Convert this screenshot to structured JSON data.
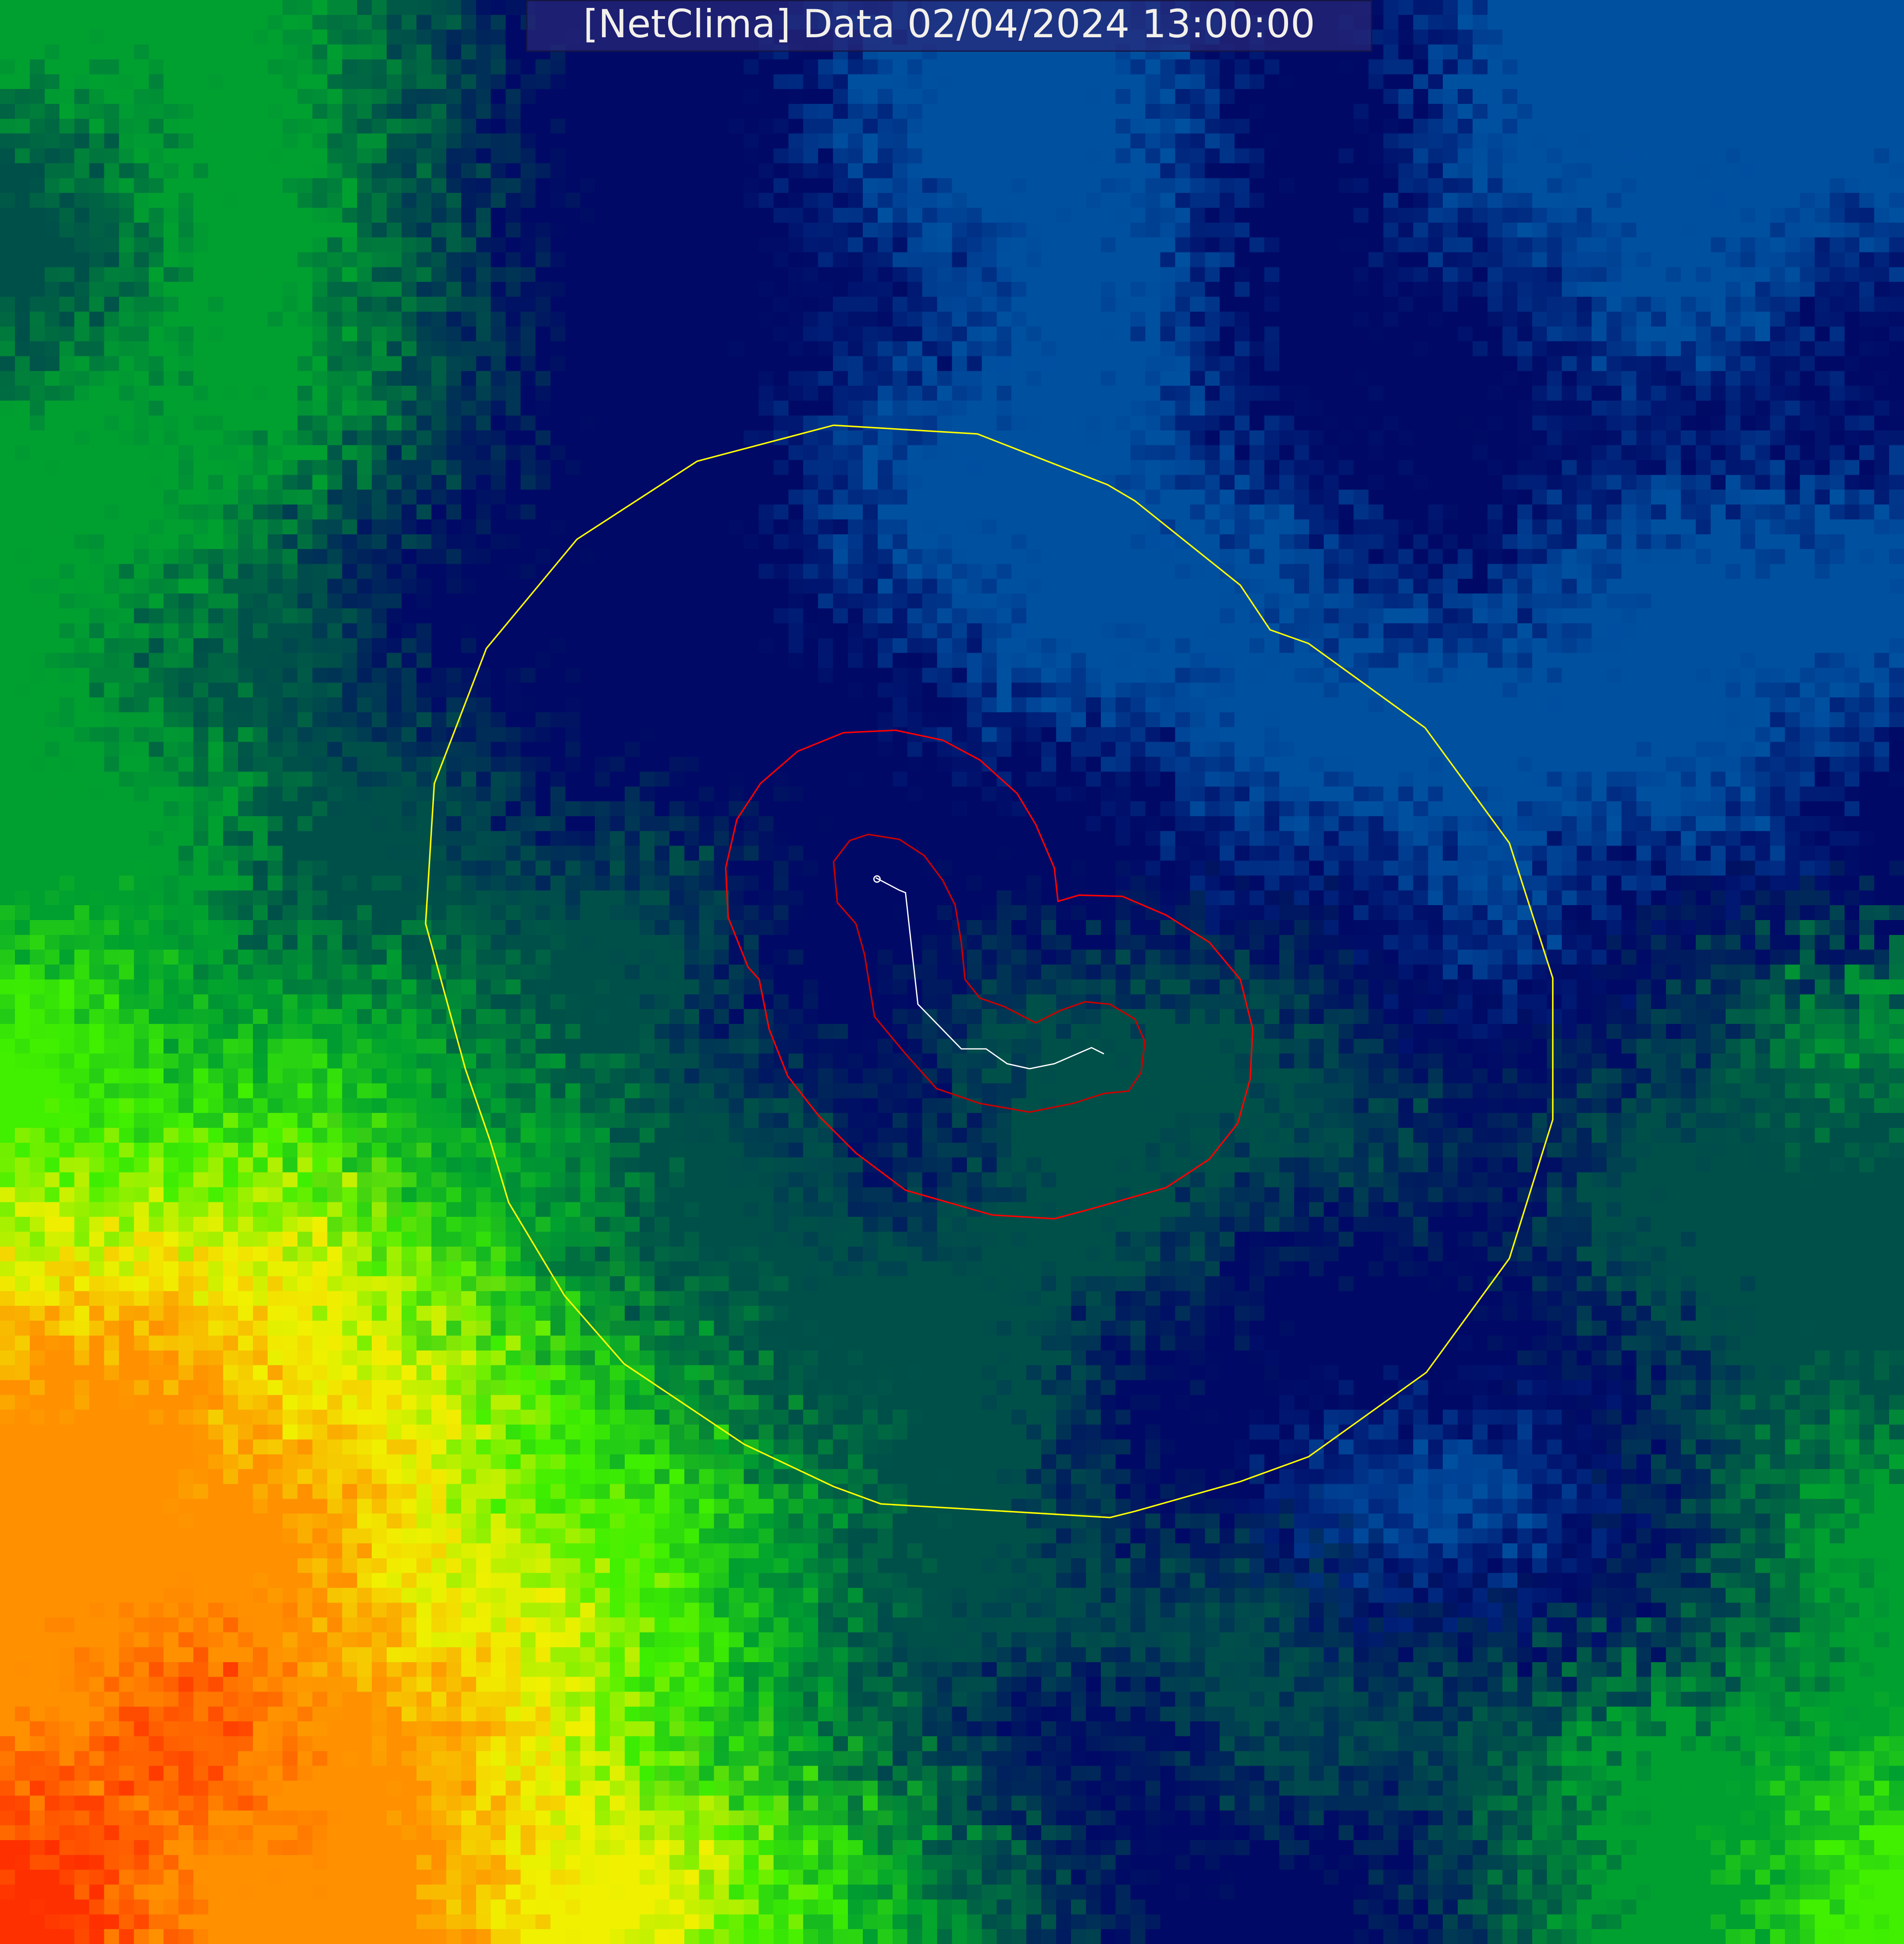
{
  "title": "[NetClima] Data 02/04/2024 13:00:00",
  "colors": {
    "outer_contour": "#ffff00",
    "inner_contour": "#ff0000",
    "track": "#ffffff",
    "colormap": [
      "#000a66",
      "#0050a0",
      "#00504a",
      "#00a030",
      "#40f000",
      "#f0f000",
      "#ff9000",
      "#ff3000"
    ]
  }
}
